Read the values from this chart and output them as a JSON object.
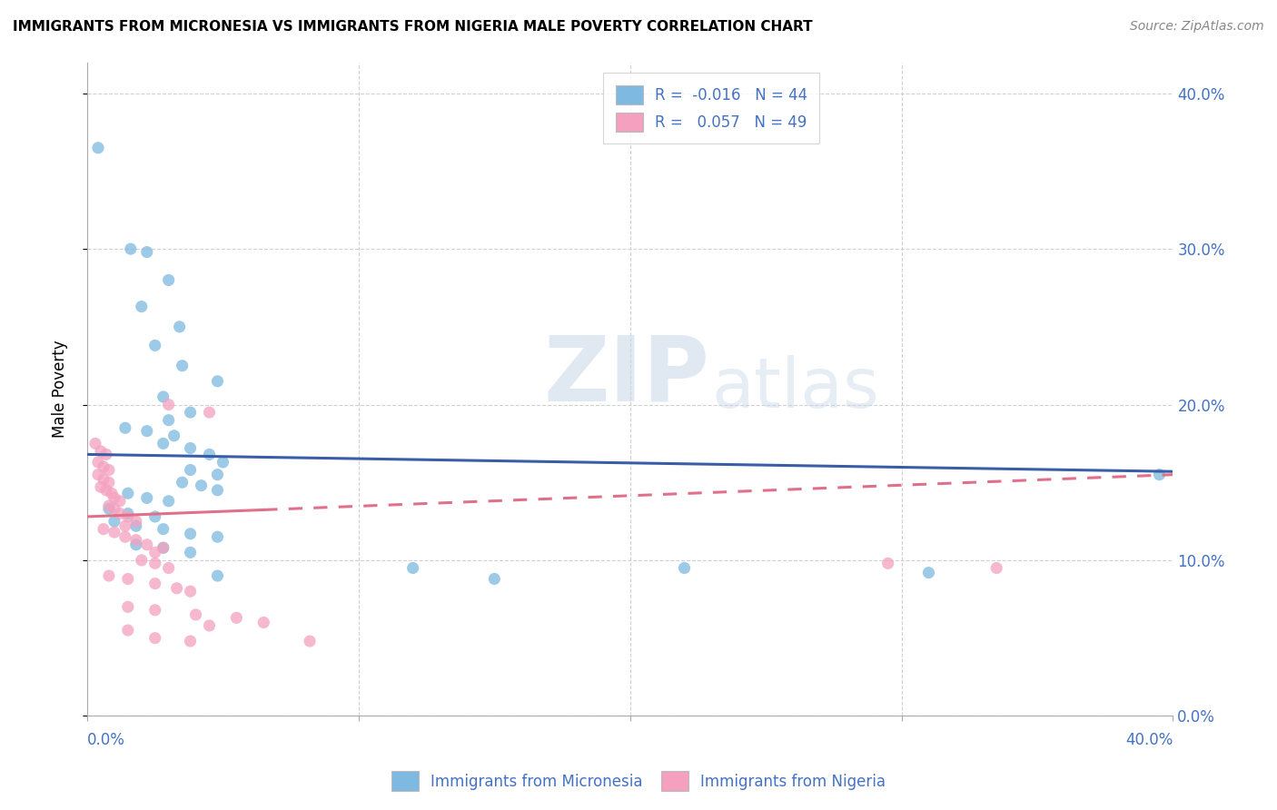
{
  "title": "IMMIGRANTS FROM MICRONESIA VS IMMIGRANTS FROM NIGERIA MALE POVERTY CORRELATION CHART",
  "source": "Source: ZipAtlas.com",
  "ylabel": "Male Poverty",
  "xmin": 0.0,
  "xmax": 0.4,
  "ymin": 0.0,
  "ymax": 0.42,
  "legend_r1": "R =  -0.016   N = 44",
  "legend_r2": "R =   0.057   N = 49",
  "micronesia_color": "#7db9e0",
  "nigeria_color": "#f4a0be",
  "micronesia_line_color": "#3a5da8",
  "nigeria_line_color": "#e0708a",
  "grid_color": "#cccccc",
  "background_color": "#ffffff",
  "watermark_zip": "ZIP",
  "watermark_atlas": "atlas",
  "micronesia_scatter": [
    [
      0.004,
      0.365
    ],
    [
      0.016,
      0.3
    ],
    [
      0.022,
      0.298
    ],
    [
      0.03,
      0.28
    ],
    [
      0.02,
      0.263
    ],
    [
      0.034,
      0.25
    ],
    [
      0.025,
      0.238
    ],
    [
      0.035,
      0.225
    ],
    [
      0.048,
      0.215
    ],
    [
      0.028,
      0.205
    ],
    [
      0.038,
      0.195
    ],
    [
      0.03,
      0.19
    ],
    [
      0.014,
      0.185
    ],
    [
      0.022,
      0.183
    ],
    [
      0.032,
      0.18
    ],
    [
      0.028,
      0.175
    ],
    [
      0.038,
      0.172
    ],
    [
      0.045,
      0.168
    ],
    [
      0.05,
      0.163
    ],
    [
      0.038,
      0.158
    ],
    [
      0.048,
      0.155
    ],
    [
      0.035,
      0.15
    ],
    [
      0.042,
      0.148
    ],
    [
      0.048,
      0.145
    ],
    [
      0.015,
      0.143
    ],
    [
      0.022,
      0.14
    ],
    [
      0.03,
      0.138
    ],
    [
      0.008,
      0.133
    ],
    [
      0.015,
      0.13
    ],
    [
      0.025,
      0.128
    ],
    [
      0.01,
      0.125
    ],
    [
      0.018,
      0.122
    ],
    [
      0.028,
      0.12
    ],
    [
      0.038,
      0.117
    ],
    [
      0.048,
      0.115
    ],
    [
      0.018,
      0.11
    ],
    [
      0.028,
      0.108
    ],
    [
      0.038,
      0.105
    ],
    [
      0.048,
      0.09
    ],
    [
      0.12,
      0.095
    ],
    [
      0.15,
      0.088
    ],
    [
      0.22,
      0.095
    ],
    [
      0.31,
      0.092
    ],
    [
      0.395,
      0.155
    ]
  ],
  "nigeria_scatter": [
    [
      0.003,
      0.175
    ],
    [
      0.005,
      0.17
    ],
    [
      0.007,
      0.168
    ],
    [
      0.004,
      0.163
    ],
    [
      0.006,
      0.16
    ],
    [
      0.008,
      0.158
    ],
    [
      0.004,
      0.155
    ],
    [
      0.006,
      0.152
    ],
    [
      0.008,
      0.15
    ],
    [
      0.005,
      0.147
    ],
    [
      0.007,
      0.145
    ],
    [
      0.009,
      0.143
    ],
    [
      0.01,
      0.14
    ],
    [
      0.012,
      0.138
    ],
    [
      0.008,
      0.135
    ],
    [
      0.01,
      0.133
    ],
    [
      0.012,
      0.13
    ],
    [
      0.015,
      0.128
    ],
    [
      0.018,
      0.125
    ],
    [
      0.014,
      0.122
    ],
    [
      0.006,
      0.12
    ],
    [
      0.01,
      0.118
    ],
    [
      0.014,
      0.115
    ],
    [
      0.018,
      0.113
    ],
    [
      0.022,
      0.11
    ],
    [
      0.028,
      0.108
    ],
    [
      0.025,
      0.105
    ],
    [
      0.03,
      0.2
    ],
    [
      0.045,
      0.195
    ],
    [
      0.02,
      0.1
    ],
    [
      0.025,
      0.098
    ],
    [
      0.03,
      0.095
    ],
    [
      0.008,
      0.09
    ],
    [
      0.015,
      0.088
    ],
    [
      0.025,
      0.085
    ],
    [
      0.033,
      0.082
    ],
    [
      0.038,
      0.08
    ],
    [
      0.015,
      0.07
    ],
    [
      0.025,
      0.068
    ],
    [
      0.04,
      0.065
    ],
    [
      0.055,
      0.063
    ],
    [
      0.015,
      0.055
    ],
    [
      0.025,
      0.05
    ],
    [
      0.038,
      0.048
    ],
    [
      0.045,
      0.058
    ],
    [
      0.065,
      0.06
    ],
    [
      0.082,
      0.048
    ],
    [
      0.295,
      0.098
    ],
    [
      0.335,
      0.095
    ]
  ]
}
